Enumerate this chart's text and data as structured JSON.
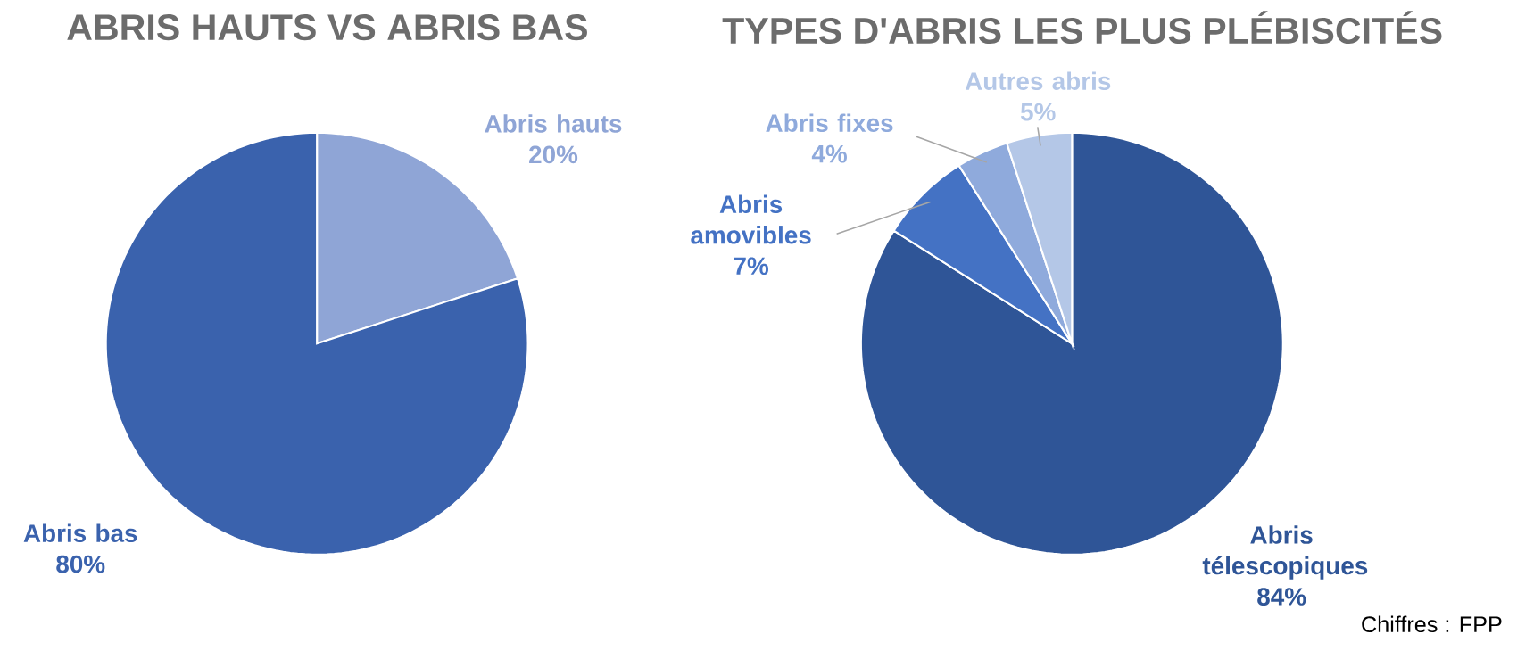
{
  "chart_data": [
    {
      "type": "pie",
      "title": "ABRIS HAUTS VS ABRIS BAS",
      "categories": [
        "Abris hauts",
        "Abris bas"
      ],
      "values": [
        20,
        80
      ],
      "colors": [
        "#8fa5d6",
        "#3a62ad"
      ],
      "value_labels": [
        "20%",
        "80%"
      ]
    },
    {
      "type": "pie",
      "title": "TYPES D'ABRIS LES PLUS PLÉBISCITÉS",
      "categories": [
        "Abris télescopiques",
        "Abris amovibles",
        "Abris fixes",
        "Autres abris"
      ],
      "values": [
        84,
        7,
        4,
        5
      ],
      "colors": [
        "#2f5597",
        "#4472c4",
        "#8faadc",
        "#b4c7e7"
      ],
      "value_labels": [
        "84%",
        "7%",
        "4%",
        "5%"
      ],
      "annotations": [
        "Chiffres : FPP"
      ]
    }
  ]
}
